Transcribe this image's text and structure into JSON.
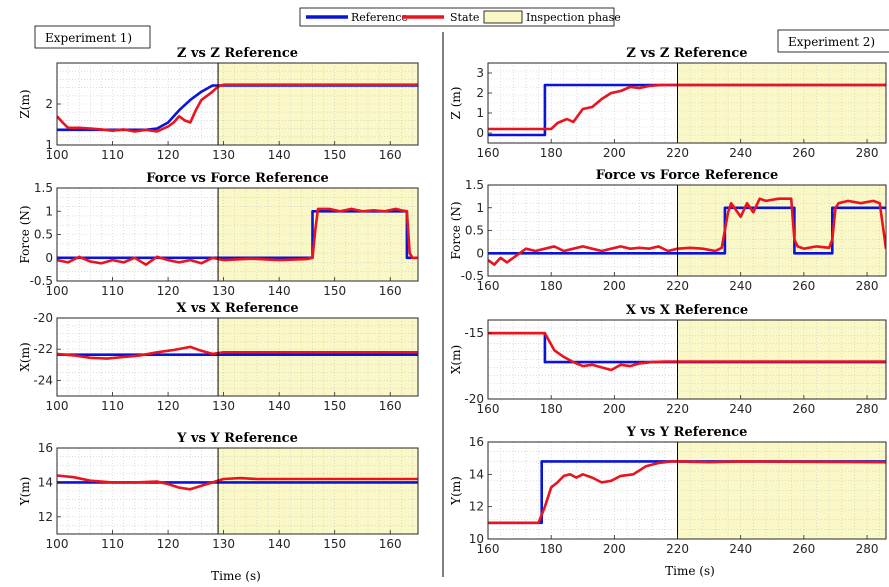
{
  "legend": {
    "reference_label": "Reference",
    "state_label": "State",
    "inspection_label": "Inspection phase"
  },
  "colors": {
    "reference": "#0a14d8",
    "state": "#e8141e",
    "inspection": "#fbf8c8",
    "grid": "#c8c8c8",
    "axis": "#262626"
  },
  "experiment_labels": [
    "Experiment 1)",
    "Experiment 2)"
  ],
  "xlabel": "Time (s)",
  "chart_data": [
    {
      "type": "line",
      "experiment": 1,
      "title": "Z vs Z Reference",
      "ylabel": "Z(m)",
      "xlim": [
        100,
        165
      ],
      "ylim": [
        1,
        3
      ],
      "xticks": [
        100,
        110,
        120,
        130,
        140,
        150,
        160
      ],
      "yticks": [
        1,
        2
      ],
      "inspection_start": 129,
      "series": [
        {
          "name": "Reference",
          "x": [
            100,
            104,
            108,
            112,
            114,
            116,
            118,
            120,
            122,
            124,
            126,
            128,
            129,
            130,
            135,
            165
          ],
          "y": [
            1.37,
            1.37,
            1.37,
            1.37,
            1.37,
            1.37,
            1.4,
            1.55,
            1.85,
            2.1,
            2.3,
            2.45,
            2.45,
            2.45,
            2.45,
            2.45
          ]
        },
        {
          "name": "State",
          "x": [
            100,
            101,
            102,
            104,
            106,
            108,
            110,
            112,
            114,
            116,
            118,
            120,
            121,
            122,
            123,
            124,
            125,
            126,
            127,
            128,
            129,
            130,
            140,
            150,
            165
          ],
          "y": [
            1.7,
            1.55,
            1.42,
            1.42,
            1.4,
            1.38,
            1.35,
            1.38,
            1.33,
            1.37,
            1.33,
            1.45,
            1.55,
            1.7,
            1.6,
            1.55,
            1.85,
            2.1,
            2.2,
            2.3,
            2.43,
            2.47,
            2.47,
            2.47,
            2.47
          ]
        }
      ]
    },
    {
      "type": "line",
      "experiment": 2,
      "title": "Z vs Z Reference",
      "ylabel": "Z (m)",
      "xlim": [
        160,
        286
      ],
      "ylim": [
        -0.5,
        3.5
      ],
      "xticks": [
        160,
        180,
        200,
        220,
        240,
        260,
        280
      ],
      "yticks": [
        0,
        1,
        2,
        3
      ],
      "inspection_start": 220,
      "series": [
        {
          "name": "Reference",
          "x": [
            160,
            178,
            178,
            286
          ],
          "y": [
            -0.1,
            -0.1,
            2.4,
            2.4
          ]
        },
        {
          "name": "State",
          "x": [
            160,
            166,
            172,
            176,
            180,
            182,
            185,
            187,
            190,
            193,
            196,
            199,
            202,
            205,
            208,
            211,
            215,
            220,
            240,
            260,
            286
          ],
          "y": [
            0.2,
            0.2,
            0.2,
            0.2,
            0.2,
            0.5,
            0.7,
            0.55,
            1.2,
            1.3,
            1.7,
            2.0,
            2.1,
            2.3,
            2.25,
            2.35,
            2.4,
            2.4,
            2.4,
            2.4,
            2.4
          ]
        }
      ]
    },
    {
      "type": "line",
      "experiment": 1,
      "title": "Force vs Force Reference",
      "ylabel": "Force (N)",
      "xlim": [
        100,
        165
      ],
      "ylim": [
        -0.5,
        1.5
      ],
      "xticks": [
        100,
        110,
        120,
        130,
        140,
        150,
        160
      ],
      "yticks": [
        -0.5,
        0,
        0.5,
        1,
        1.5
      ],
      "inspection_start": 129,
      "series": [
        {
          "name": "Reference",
          "x": [
            100,
            146,
            146,
            163,
            163,
            165
          ],
          "y": [
            0,
            0,
            1,
            1,
            0,
            0
          ]
        },
        {
          "name": "State",
          "x": [
            100,
            102,
            104,
            106,
            108,
            110,
            112,
            114,
            116,
            118,
            120,
            122,
            124,
            126,
            128,
            130,
            135,
            140,
            145,
            146,
            146.5,
            147,
            149,
            151,
            153,
            155,
            157,
            159,
            161,
            162,
            163,
            163.5,
            164,
            165
          ],
          "y": [
            -0.05,
            -0.1,
            0.02,
            -0.08,
            -0.12,
            -0.05,
            -0.1,
            0.0,
            -0.15,
            0.02,
            -0.05,
            -0.1,
            -0.05,
            -0.12,
            0.0,
            -0.05,
            -0.02,
            -0.05,
            -0.03,
            0.0,
            0.6,
            1.05,
            1.05,
            1.0,
            1.05,
            1.0,
            1.02,
            1.0,
            1.05,
            1.02,
            1.0,
            0.1,
            0.0,
            0.0
          ]
        }
      ]
    },
    {
      "type": "line",
      "experiment": 2,
      "title": "Force vs Force Reference",
      "ylabel": "Force (N)",
      "xlim": [
        160,
        286
      ],
      "ylim": [
        -0.5,
        1.5
      ],
      "xticks": [
        160,
        180,
        200,
        220,
        240,
        260,
        280
      ],
      "yticks": [
        -0.5,
        0,
        0.5,
        1,
        1.5
      ],
      "inspection_start": 220,
      "series": [
        {
          "name": "Reference",
          "x": [
            160,
            235,
            235,
            257,
            257,
            269,
            269,
            286
          ],
          "y": [
            0,
            0,
            1,
            1,
            0,
            0,
            1,
            1
          ]
        },
        {
          "name": "State",
          "x": [
            160,
            162,
            164,
            166,
            168,
            170,
            172,
            175,
            178,
            181,
            184,
            187,
            190,
            193,
            196,
            199,
            202,
            205,
            208,
            211,
            214,
            217,
            220,
            224,
            228,
            232,
            234,
            236,
            237,
            238,
            240,
            242,
            244,
            246,
            248,
            252,
            256,
            257,
            258,
            260,
            264,
            268,
            269,
            270,
            271,
            274,
            278,
            282,
            284,
            286
          ],
          "y": [
            -0.15,
            -0.25,
            -0.1,
            -0.2,
            -0.1,
            0.0,
            0.1,
            0.05,
            0.1,
            0.15,
            0.05,
            0.1,
            0.15,
            0.1,
            0.05,
            0.1,
            0.15,
            0.1,
            0.12,
            0.1,
            0.15,
            0.05,
            0.1,
            0.12,
            0.1,
            0.05,
            0.12,
            0.9,
            1.1,
            1.0,
            0.8,
            1.1,
            0.9,
            1.2,
            1.15,
            1.2,
            1.2,
            0.3,
            0.15,
            0.1,
            0.15,
            0.12,
            0.3,
            1.0,
            1.1,
            1.15,
            1.1,
            1.15,
            1.1,
            0.1
          ]
        }
      ]
    },
    {
      "type": "line",
      "experiment": 1,
      "title": "X vs X Reference",
      "ylabel": "X(m)",
      "xlim": [
        100,
        165
      ],
      "ylim": [
        -25,
        -20
      ],
      "xticks": [
        100,
        110,
        120,
        130,
        140,
        150,
        160
      ],
      "yticks": [
        -24,
        -22,
        -20
      ],
      "inspection_start": 129,
      "series": [
        {
          "name": "Reference",
          "x": [
            100,
            165
          ],
          "y": [
            -22.35,
            -22.35
          ]
        },
        {
          "name": "State",
          "x": [
            100,
            103,
            106,
            109,
            112,
            115,
            118,
            121,
            124,
            126,
            128,
            130,
            135,
            140,
            150,
            165
          ],
          "y": [
            -22.3,
            -22.4,
            -22.55,
            -22.6,
            -22.5,
            -22.4,
            -22.2,
            -22.05,
            -21.85,
            -22.1,
            -22.3,
            -22.2,
            -22.2,
            -22.2,
            -22.2,
            -22.2
          ]
        }
      ]
    },
    {
      "type": "line",
      "experiment": 2,
      "title": "X vs X Reference",
      "ylabel": "X(m)",
      "xlim": [
        160,
        286
      ],
      "ylim": [
        -20,
        -14
      ],
      "xticks": [
        160,
        180,
        200,
        220,
        240,
        260,
        280
      ],
      "yticks": [
        -20,
        -15
      ],
      "inspection_start": 220,
      "series": [
        {
          "name": "Reference",
          "x": [
            160,
            178,
            178,
            286
          ],
          "y": [
            -15,
            -15,
            -17.2,
            -17.2
          ]
        },
        {
          "name": "State",
          "x": [
            160,
            178,
            181,
            184,
            187,
            190,
            193,
            196,
            199,
            202,
            205,
            208,
            212,
            216,
            220,
            240,
            260,
            286
          ],
          "y": [
            -15,
            -15,
            -16.3,
            -16.8,
            -17.2,
            -17.5,
            -17.4,
            -17.6,
            -17.8,
            -17.4,
            -17.5,
            -17.3,
            -17.2,
            -17.15,
            -17.15,
            -17.15,
            -17.15,
            -17.15
          ]
        }
      ]
    },
    {
      "type": "line",
      "experiment": 1,
      "title": "Y vs Y Reference",
      "ylabel": "Y(m)",
      "xlim": [
        100,
        165
      ],
      "ylim": [
        11,
        16
      ],
      "xticks": [
        100,
        110,
        120,
        130,
        140,
        150,
        160
      ],
      "yticks": [
        12,
        14,
        16
      ],
      "inspection_start": 129,
      "series": [
        {
          "name": "Reference",
          "x": [
            100,
            165
          ],
          "y": [
            14,
            14
          ]
        },
        {
          "name": "State",
          "x": [
            100,
            103,
            106,
            110,
            114,
            118,
            120,
            122,
            124,
            126,
            128,
            130,
            133,
            136,
            140,
            150,
            165
          ],
          "y": [
            14.4,
            14.3,
            14.1,
            14.0,
            14.0,
            14.05,
            13.9,
            13.7,
            13.6,
            13.8,
            14.0,
            14.2,
            14.25,
            14.2,
            14.2,
            14.2,
            14.2
          ]
        }
      ]
    },
    {
      "type": "line",
      "experiment": 2,
      "title": "Y vs Y Reference",
      "ylabel": "Y(m)",
      "xlim": [
        160,
        286
      ],
      "ylim": [
        10,
        16
      ],
      "xticks": [
        160,
        180,
        200,
        220,
        240,
        260,
        280
      ],
      "yticks": [
        10,
        12,
        14,
        16
      ],
      "inspection_start": 220,
      "series": [
        {
          "name": "Reference",
          "x": [
            160,
            177,
            177,
            286
          ],
          "y": [
            11,
            11,
            14.8,
            14.8
          ]
        },
        {
          "name": "State",
          "x": [
            160,
            176,
            178,
            180,
            182,
            184,
            186,
            188,
            190,
            193,
            196,
            199,
            202,
            206,
            210,
            214,
            218,
            220,
            230,
            240,
            286
          ],
          "y": [
            11,
            11,
            12,
            13.2,
            13.5,
            13.9,
            14.0,
            13.8,
            14.0,
            13.8,
            13.5,
            13.6,
            13.9,
            14.0,
            14.5,
            14.7,
            14.8,
            14.8,
            14.75,
            14.8,
            14.75
          ]
        }
      ]
    }
  ]
}
